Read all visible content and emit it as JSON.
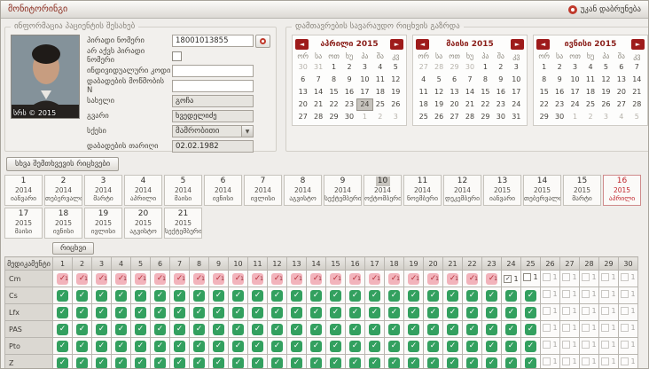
{
  "window": {
    "title": "მონიტორინგი",
    "back_label": "უკან დაბრუნება"
  },
  "icons": {
    "back": "red-ring-icon",
    "lookup": "red-ring-icon",
    "prev_glyph": "◄",
    "next_glyph": "►",
    "check_glyph": "✓",
    "select_arrow": "▼"
  },
  "patient": {
    "section_title": "ინფორმაცია პაციენტის შესახებ",
    "photo_watermark": "სრს © 2015",
    "fields": {
      "personal_number_label": "პირადი ნომერი",
      "personal_number_value": "18001013855",
      "no_personal_number_label": "არ აქვს პირადი ნომერი",
      "individual_code_label": "ინდივიდუალური კოდი",
      "individual_code_value": "",
      "birth_certificate_label": "დაბადების მოწმობის N",
      "birth_certificate_value": "",
      "first_name_label": "სახელი",
      "first_name_value": "გოჩა",
      "last_name_label": "გვარი",
      "last_name_value": "ხვედელიძე",
      "sex_label": "სქესი",
      "sex_value": "მამრობითი",
      "birth_date_label": "დაბადების თარიღი",
      "birth_date_value": "02.02.1982"
    }
  },
  "calendar_panel": {
    "section_title": "დამთავრების სავარაუდო რიცხვის გაზრდა",
    "day_headers": [
      "ორ",
      "სა",
      "ოთ",
      "ხუ",
      "პა",
      "შა",
      "კვ"
    ],
    "calendars": [
      {
        "title": "აპრილი 2015",
        "prev_days": [
          30,
          31
        ],
        "day_count": 30,
        "next_days": [
          1,
          2,
          3
        ],
        "selected_day": 24
      },
      {
        "title": "მაისი 2015",
        "prev_days": [
          27,
          28,
          29,
          30
        ],
        "day_count": 31,
        "next_days": [],
        "selected_day": null
      },
      {
        "title": "ივნისი 2015",
        "prev_days": [],
        "day_count": 30,
        "next_days": [
          1,
          2,
          3,
          4,
          5
        ],
        "selected_day": null
      }
    ]
  },
  "months_strip": {
    "button_label": "სხვა შემთხვევის რიცხვები",
    "cells": [
      {
        "num": 1,
        "year": "2014",
        "month": "იანვარი",
        "state": ""
      },
      {
        "num": 2,
        "year": "2014",
        "month": "თებერვალი",
        "state": ""
      },
      {
        "num": 3,
        "year": "2014",
        "month": "მარტი",
        "state": ""
      },
      {
        "num": 4,
        "year": "2014",
        "month": "აპრილი",
        "state": ""
      },
      {
        "num": 5,
        "year": "2014",
        "month": "მაისი",
        "state": ""
      },
      {
        "num": 6,
        "year": "2014",
        "month": "ივნისი",
        "state": ""
      },
      {
        "num": 7,
        "year": "2014",
        "month": "ივლისი",
        "state": ""
      },
      {
        "num": 8,
        "year": "2014",
        "month": "აგვისტო",
        "state": ""
      },
      {
        "num": 9,
        "year": "2014",
        "month": "სექტემბერი",
        "state": ""
      },
      {
        "num": 10,
        "year": "2014",
        "month": "ოქტომბერი",
        "state": "selected"
      },
      {
        "num": 11,
        "year": "2014",
        "month": "ნოემბერი",
        "state": ""
      },
      {
        "num": 12,
        "year": "2014",
        "month": "დეკემბერი",
        "state": ""
      },
      {
        "num": 13,
        "year": "2015",
        "month": "იანვარი",
        "state": ""
      },
      {
        "num": 14,
        "year": "2015",
        "month": "თებერვალი",
        "state": ""
      },
      {
        "num": 15,
        "year": "2015",
        "month": "მარტი",
        "state": ""
      },
      {
        "num": 16,
        "year": "2015",
        "month": "აპრილი",
        "state": "current"
      },
      {
        "num": 17,
        "year": "2015",
        "month": "მაისი",
        "state": ""
      },
      {
        "num": 18,
        "year": "2015",
        "month": "ივნისი",
        "state": ""
      },
      {
        "num": 19,
        "year": "2015",
        "month": "ივლისი",
        "state": ""
      },
      {
        "num": 20,
        "year": "2015",
        "month": "აგვისტო",
        "state": ""
      },
      {
        "num": 21,
        "year": "2015",
        "month": "სექტემბერი",
        "state": ""
      }
    ]
  },
  "meds_table": {
    "button_label": "რიცხვი",
    "first_col_header": "მედიკამენტი",
    "day_count": 30,
    "cell_types": {
      "P": "pink-check-dose",
      "G": "green-check-dose",
      "C": "checkbox-checked-1",
      "c": "checkbox-unchecked-1",
      "d": "checkbox-disabled-1"
    },
    "rows": [
      {
        "name": "Cm",
        "pattern": "PPPPPPPPPPPPPPPPPPPPPPPCcddddd"
      },
      {
        "name": "Cs",
        "pattern": "GGGGGGGGGGGGGGGGGGGGGGGGGddddd"
      },
      {
        "name": "Lfx",
        "pattern": "GGGGGGGGGGGGGGGGGGGGGGGGGddddd"
      },
      {
        "name": "PAS",
        "pattern": "GGGGGGGGGGGGGGGGGGGGGGGGGddddd"
      },
      {
        "name": "Pto",
        "pattern": "GGGGGGGGGGGGGGGGGGGGGGGGGddddd"
      },
      {
        "name": "Z",
        "pattern": "GGGGGGGGGGGGGGGGGGGGGGGGGddddd"
      }
    ]
  }
}
